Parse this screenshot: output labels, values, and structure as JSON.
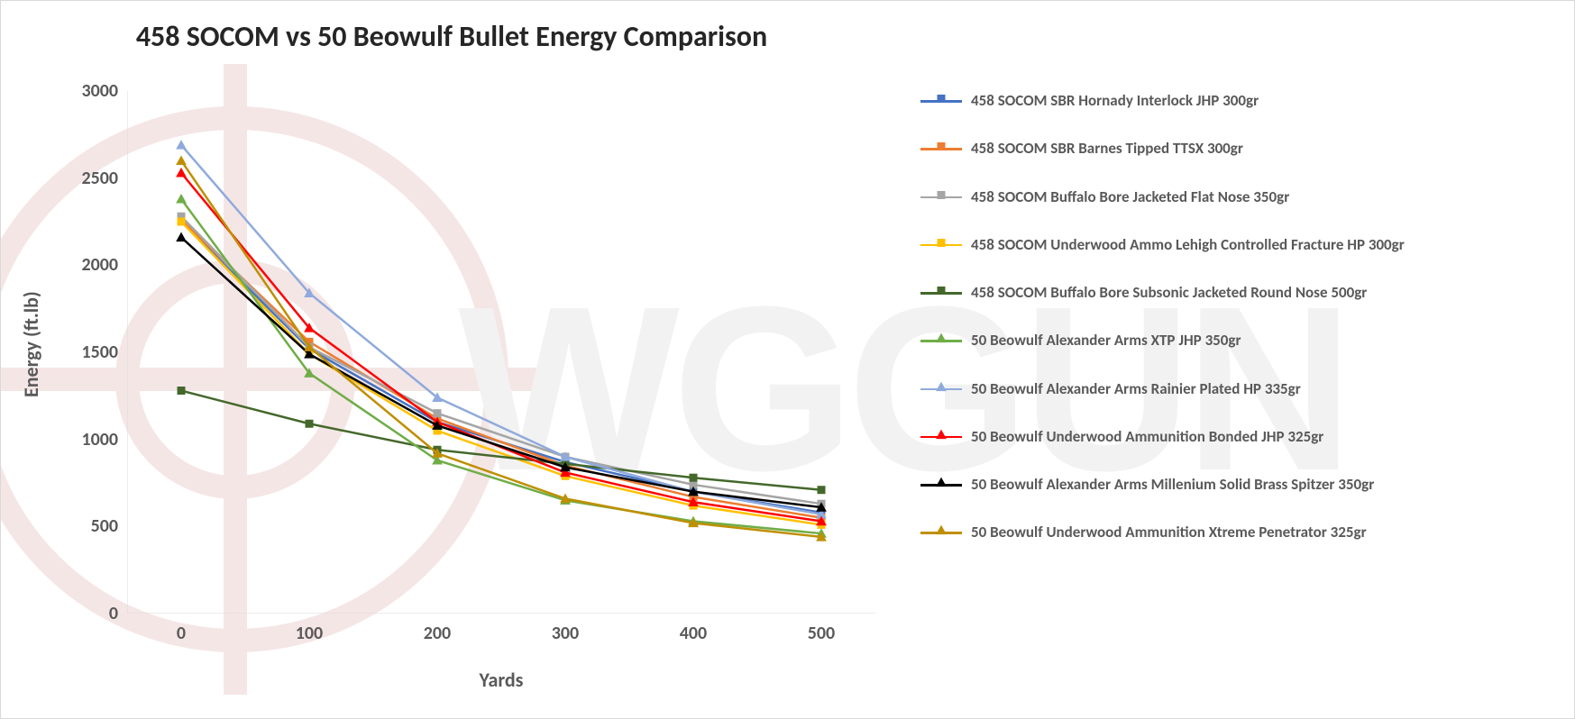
{
  "chart": {
    "type": "line",
    "title": "458 SOCOM vs 50 Beowulf Bullet Energy Comparison",
    "title_fontsize": 32,
    "title_color": "#262626",
    "xlabel": "Yards",
    "ylabel": "Energy (ft.lb)",
    "axis_label_fontsize": 22,
    "axis_label_color": "#595959",
    "tick_fontsize": 20,
    "tick_fontweight": "bold",
    "background_color": "#ffffff",
    "plot_border_color": "#d9d9d9",
    "grid": false,
    "x": {
      "values": [
        0,
        100,
        200,
        300,
        400,
        500
      ],
      "lim": [
        0,
        500
      ]
    },
    "y": {
      "ticks": [
        0,
        500,
        1000,
        1500,
        2000,
        2500,
        3000
      ],
      "lim": [
        0,
        3000
      ]
    },
    "line_width": 2.5,
    "marker_size": 9,
    "watermark": {
      "text": "WGGUN",
      "reticle_color": "#f5e6e6",
      "text_color": "#f2f2f2"
    },
    "series": [
      {
        "label": "458 SOCOM SBR Hornady Interlock JHP 300gr",
        "color": "#4472c4",
        "marker": "square",
        "data": [
          2250,
          1520,
          1100,
          870,
          700,
          580
        ]
      },
      {
        "label": "458 SOCOM SBR Barnes Tipped TTSX 300gr",
        "color": "#ed7d31",
        "marker": "square",
        "data": [
          2260,
          1560,
          1120,
          850,
          670,
          550
        ]
      },
      {
        "label": "458 SOCOM Buffalo Bore Jacketed Flat Nose 350gr",
        "color": "#a5a5a5",
        "marker": "square",
        "data": [
          2280,
          1530,
          1150,
          900,
          740,
          630
        ]
      },
      {
        "label": "458 SOCOM Underwood Ammo Lehigh Controlled Fracture HP 300gr",
        "color": "#ffc000",
        "marker": "square",
        "data": [
          2250,
          1490,
          1050,
          790,
          620,
          510
        ]
      },
      {
        "label": "458 SOCOM Buffalo Bore Subsonic Jacketed Round Nose 500gr",
        "color": "#44682b",
        "marker": "square",
        "data": [
          1280,
          1090,
          940,
          860,
          780,
          710
        ]
      },
      {
        "label": "50 Beowulf Alexander Arms XTP JHP 350gr",
        "color": "#70ad47",
        "marker": "triangle",
        "data": [
          2380,
          1380,
          880,
          650,
          530,
          460
        ]
      },
      {
        "label": "50 Beowulf Alexander Arms Rainier Plated HP 335gr",
        "color": "#8faadc",
        "marker": "triangle",
        "data": [
          2690,
          1840,
          1240,
          900,
          700,
          570
        ]
      },
      {
        "label": "50 Beowulf Underwood Ammunition Bonded JHP 325gr",
        "color": "#ff0000",
        "marker": "triangle",
        "data": [
          2530,
          1640,
          1100,
          810,
          640,
          530
        ]
      },
      {
        "label": "50 Beowulf Alexander Arms Millenium Solid Brass Spitzer 350gr",
        "color": "#000000",
        "marker": "triangle",
        "data": [
          2160,
          1490,
          1080,
          840,
          700,
          610
        ]
      },
      {
        "label": "50 Beowulf Underwood Ammunition Xtreme Penetrator 325gr",
        "color": "#bf8f00",
        "marker": "triangle",
        "data": [
          2600,
          1530,
          920,
          660,
          520,
          440
        ]
      }
    ]
  }
}
